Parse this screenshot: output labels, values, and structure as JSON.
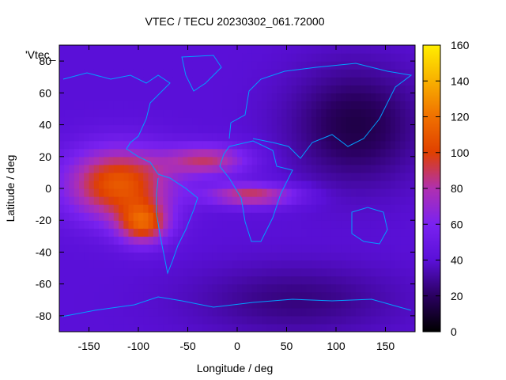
{
  "chart_data": {
    "type": "heatmap",
    "title": "VTEC / TECU 20230302_061.72000",
    "xlabel": "Longitude / deg",
    "ylabel": "Latitude / deg",
    "xlim": [
      -180,
      180
    ],
    "ylim": [
      -90,
      90
    ],
    "x_ticks": [
      -150,
      -100,
      -50,
      0,
      50,
      100,
      150
    ],
    "y_ticks": [
      -80,
      -60,
      -40,
      -20,
      0,
      20,
      40,
      60,
      80
    ],
    "colorbar": {
      "range": [
        0,
        160
      ],
      "ticks": [
        0,
        20,
        40,
        60,
        80,
        100,
        120,
        140,
        160
      ],
      "colormap": [
        "#000000",
        "#2a0060",
        "#5a10d8",
        "#7a22f0",
        "#b030b0",
        "#e04000",
        "#f07000",
        "#f8b000",
        "#ffee00"
      ]
    },
    "series_label": "'Vtec_",
    "background_level": 40,
    "features": [
      {
        "name": "equatorial anomaly Pacific/Americas",
        "lon": -120,
        "lat": 5,
        "peak": 110
      },
      {
        "name": "southern crest",
        "lon": -95,
        "lat": -22,
        "peak": 140
      },
      {
        "name": "northern tongue Atlantic",
        "lon": -30,
        "lat": 18,
        "peak": 100
      },
      {
        "name": "southern tongue Africa",
        "lon": 10,
        "lat": -5,
        "peak": 100
      },
      {
        "name": "Asia-Pacific night minimum",
        "lon": 120,
        "lat": 45,
        "peak": 15
      }
    ]
  }
}
